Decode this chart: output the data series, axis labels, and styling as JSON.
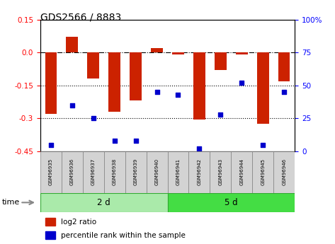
{
  "title": "GDS2566 / 8883",
  "samples": [
    "GSM96935",
    "GSM96936",
    "GSM96937",
    "GSM96938",
    "GSM96939",
    "GSM96940",
    "GSM96941",
    "GSM96942",
    "GSM96943",
    "GSM96944",
    "GSM96945",
    "GSM96946"
  ],
  "log2_ratio": [
    -0.28,
    0.07,
    -0.12,
    -0.27,
    -0.22,
    0.02,
    -0.01,
    -0.305,
    -0.08,
    -0.01,
    -0.325,
    -0.13
  ],
  "percentile_rank": [
    5,
    35,
    25,
    8,
    8,
    45,
    43,
    2,
    28,
    52,
    5,
    45
  ],
  "groups": [
    {
      "label": "2 d",
      "start": 0,
      "end": 6,
      "color": "#AAEAAA"
    },
    {
      "label": "5 d",
      "start": 6,
      "end": 12,
      "color": "#44DD44"
    }
  ],
  "bar_color": "#CC2200",
  "dot_color": "#0000CC",
  "ylim_left": [
    -0.45,
    0.15
  ],
  "ylim_right": [
    0,
    100
  ],
  "yticks_left": [
    0.15,
    0.0,
    -0.15,
    -0.3,
    -0.45
  ],
  "yticks_right": [
    100,
    75,
    50,
    25,
    0
  ],
  "hlines": [
    0.0,
    -0.15,
    -0.3
  ],
  "hline_styles": [
    "dashdot",
    "dotted",
    "dotted"
  ],
  "background_color": "#ffffff",
  "bar_width": 0.55,
  "time_label": "time",
  "legend_items": [
    {
      "label": "log2 ratio",
      "color": "#CC2200"
    },
    {
      "label": "percentile rank within the sample",
      "color": "#0000CC"
    }
  ]
}
